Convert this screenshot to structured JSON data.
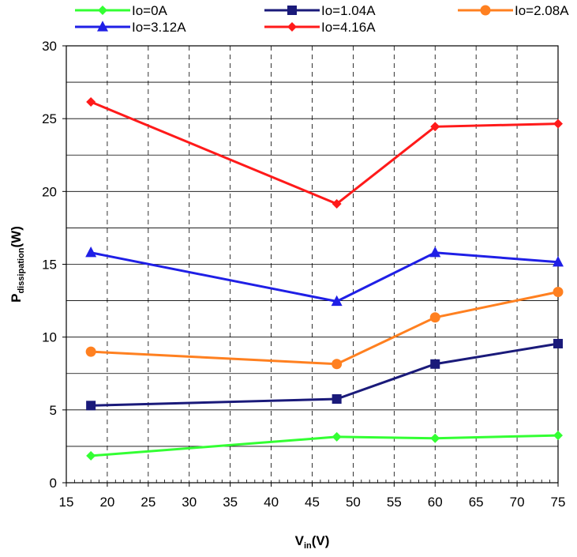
{
  "chart_data": {
    "type": "line",
    "xlabel_main": "V",
    "xlabel_sub": "in",
    "xlabel_unit": "(V)",
    "ylabel_main": "P",
    "ylabel_sub": "dissipation",
    "ylabel_unit": "(W)",
    "xlim": [
      15,
      75
    ],
    "ylim": [
      0,
      30
    ],
    "x_ticks": [
      15,
      20,
      25,
      30,
      35,
      40,
      45,
      50,
      55,
      60,
      65,
      70,
      75
    ],
    "y_ticks": [
      0,
      5,
      10,
      15,
      20,
      25,
      30
    ],
    "x_tick_labels": [
      "15",
      "20",
      "25",
      "30",
      "35",
      "40",
      "45",
      "50",
      "55",
      "60",
      "65",
      "70",
      "75"
    ],
    "y_tick_labels": [
      "0",
      "5",
      "10",
      "15",
      "20",
      "25",
      "30"
    ],
    "grid": true,
    "legend_position": "top",
    "x": [
      18,
      48,
      60,
      75
    ],
    "series": [
      {
        "name": "Io=0A",
        "color": "#33ff33",
        "marker": "diamond",
        "values": [
          1.85,
          3.15,
          3.05,
          3.25
        ]
      },
      {
        "name": "Io=1.04A",
        "color": "#1a1a7a",
        "marker": "square",
        "values": [
          5.3,
          5.75,
          8.15,
          9.55
        ]
      },
      {
        "name": "Io=2.08A",
        "color": "#ff8020",
        "marker": "circle",
        "values": [
          9.0,
          8.15,
          11.35,
          13.1
        ]
      },
      {
        "name": "Io=3.12A",
        "color": "#1f1fe6",
        "marker": "triangle",
        "values": [
          15.8,
          12.45,
          15.8,
          15.15
        ]
      },
      {
        "name": "Io=4.16A",
        "color": "#ff1a1a",
        "marker": "diamond",
        "values": [
          26.15,
          19.15,
          24.45,
          24.65
        ]
      }
    ]
  }
}
